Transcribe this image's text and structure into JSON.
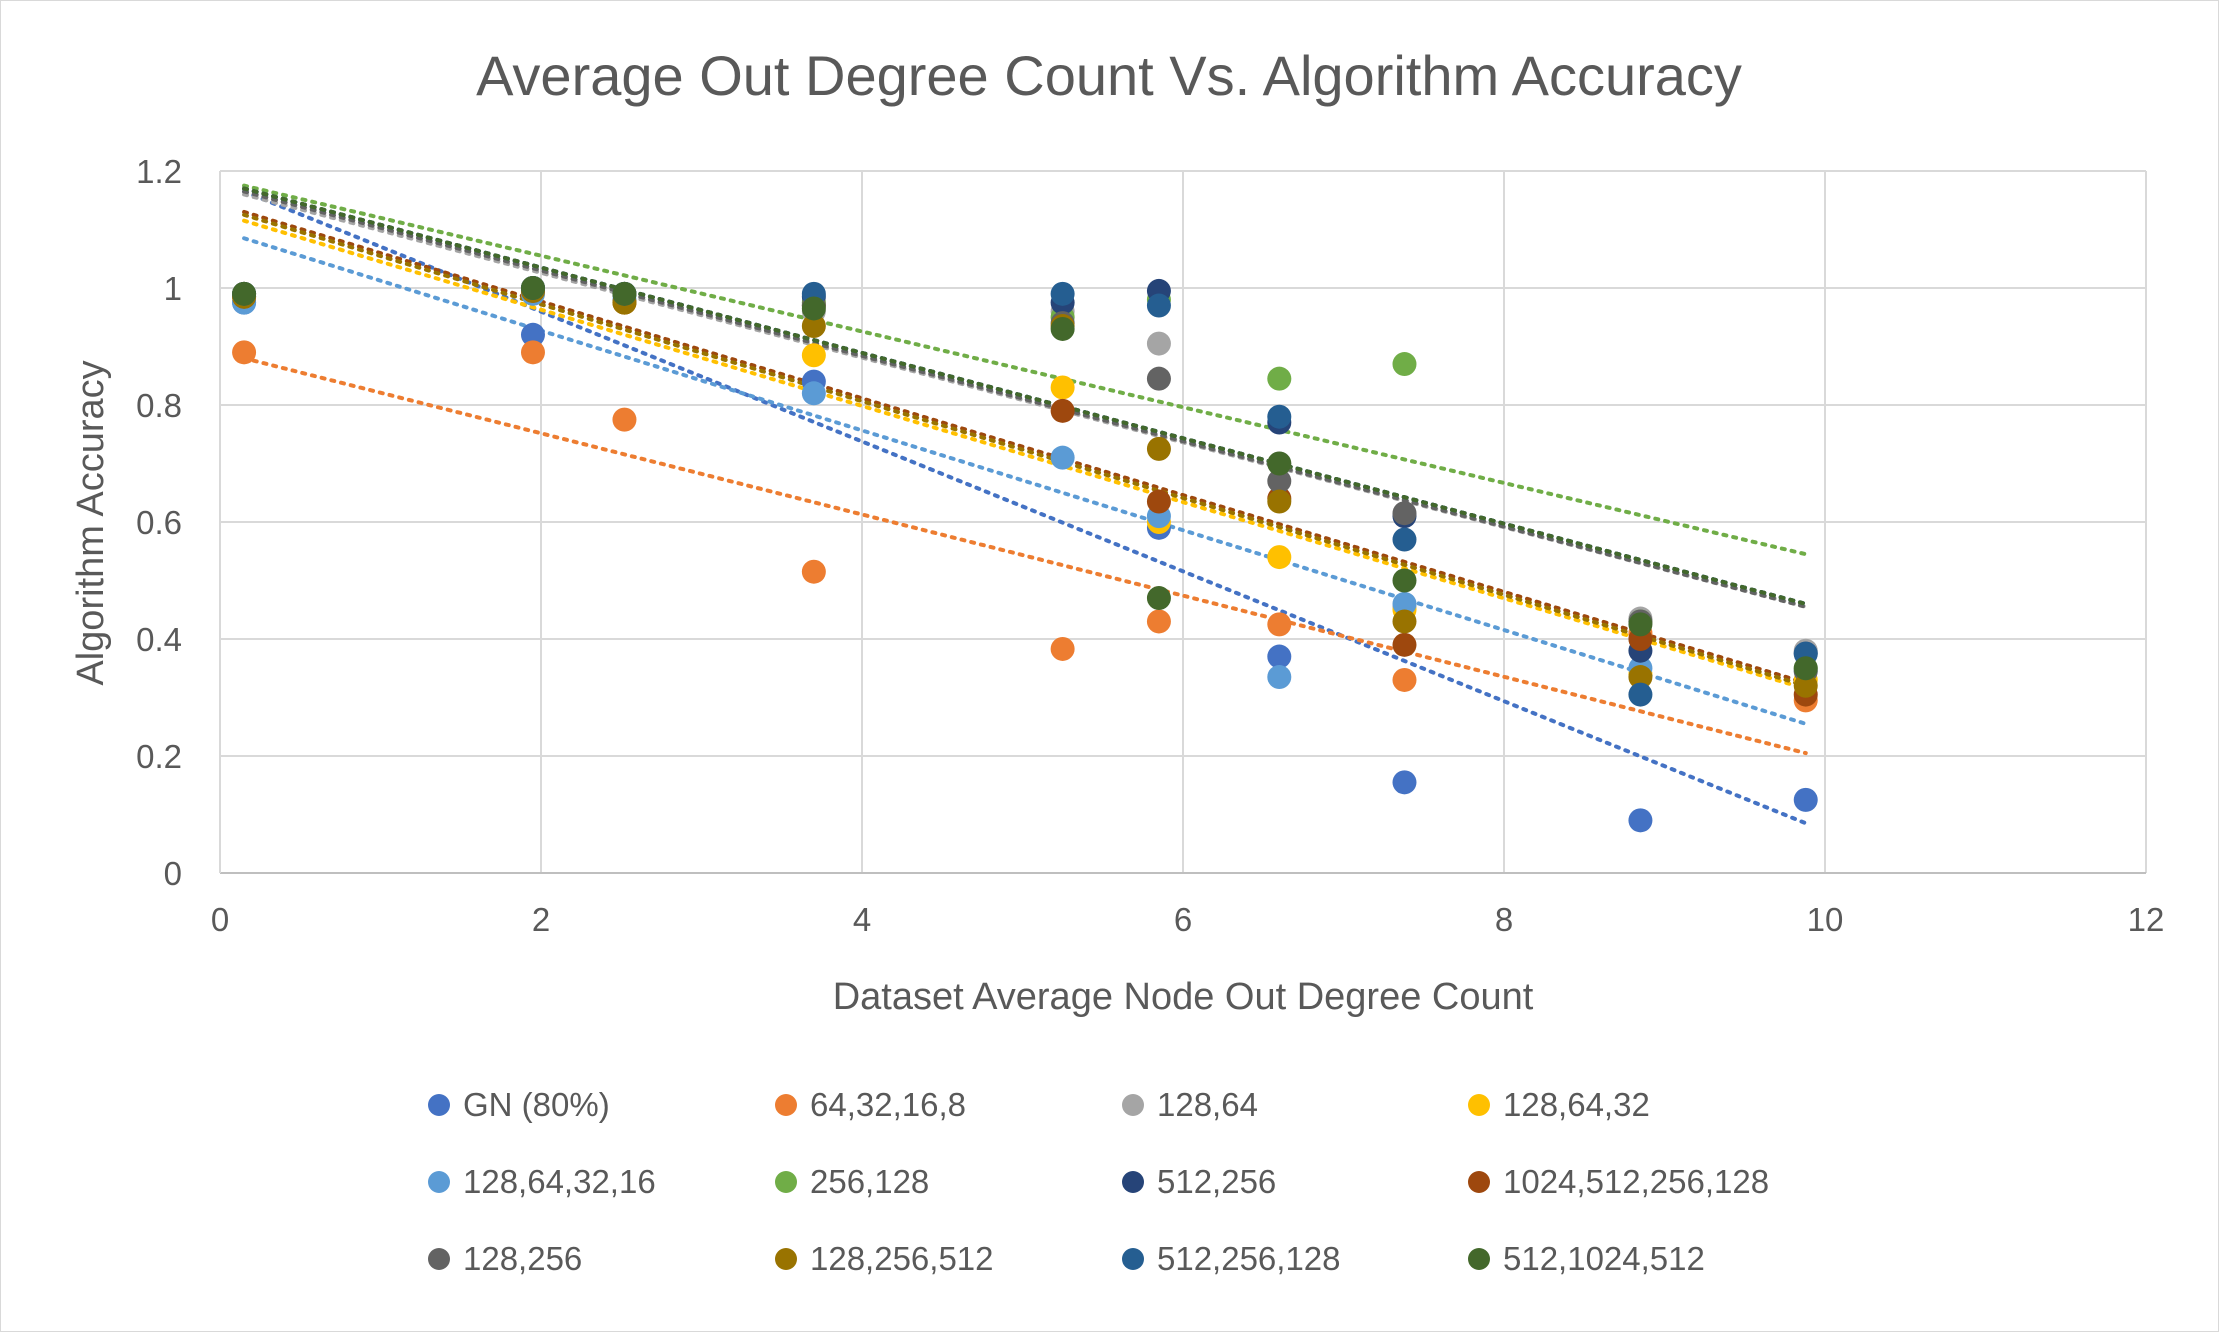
{
  "chart_data": {
    "type": "scatter",
    "title": "Average Out Degree Count Vs. Algorithm Accuracy",
    "xlabel": "Dataset Average Node Out Degree Count",
    "ylabel": "Algorithm Accuracy",
    "xlim": [
      0,
      12
    ],
    "ylim": [
      0,
      1.2
    ],
    "x_ticks": [
      "0",
      "2",
      "4",
      "6",
      "8",
      "10",
      "12"
    ],
    "y_ticks": [
      "0",
      "0.2",
      "0.4",
      "0.6",
      "0.8",
      "1",
      "1.2"
    ],
    "grid": true,
    "trendlines": "linear, dotted, one per series",
    "legend_position": "bottom",
    "series": [
      {
        "name": "GN (80%)",
        "color": "#4472C4",
        "points": [
          [
            0.15,
            0.975
          ],
          [
            1.95,
            0.92
          ],
          [
            3.7,
            0.84
          ],
          [
            5.85,
            0.59
          ],
          [
            6.6,
            0.37
          ],
          [
            7.38,
            0.155
          ],
          [
            8.85,
            0.09
          ],
          [
            9.88,
            0.125
          ]
        ],
        "trend": [
          [
            0.15,
            1.165
          ],
          [
            9.88,
            0.085
          ]
        ]
      },
      {
        "name": "64,32,16,8",
        "color": "#ED7D31",
        "points": [
          [
            0.15,
            0.89
          ],
          [
            1.95,
            0.89
          ],
          [
            2.52,
            0.775
          ],
          [
            3.7,
            0.515
          ],
          [
            5.25,
            0.383
          ],
          [
            5.85,
            0.43
          ],
          [
            6.6,
            0.425
          ],
          [
            7.38,
            0.33
          ],
          [
            8.85,
            0.41
          ],
          [
            9.88,
            0.295
          ]
        ],
        "trend": [
          [
            0.15,
            0.88
          ],
          [
            9.88,
            0.205
          ]
        ]
      },
      {
        "name": "128,64",
        "color": "#A5A5A5",
        "points": [
          [
            0.15,
            0.985
          ],
          [
            1.95,
            0.995
          ],
          [
            2.52,
            0.99
          ],
          [
            3.7,
            0.96
          ],
          [
            5.25,
            0.96
          ],
          [
            5.85,
            0.905
          ],
          [
            6.6,
            0.7
          ],
          [
            7.38,
            0.455
          ],
          [
            8.85,
            0.435
          ],
          [
            9.88,
            0.38
          ]
        ],
        "trend": [
          [
            0.15,
            1.16
          ],
          [
            9.88,
            0.455
          ]
        ]
      },
      {
        "name": "128,64,32",
        "color": "#FFC000",
        "points": [
          [
            0.15,
            0.99
          ],
          [
            1.95,
            0.99
          ],
          [
            2.52,
            0.975
          ],
          [
            3.7,
            0.885
          ],
          [
            5.25,
            0.83
          ],
          [
            5.85,
            0.6
          ],
          [
            6.6,
            0.54
          ],
          [
            7.38,
            0.45
          ],
          [
            8.85,
            0.34
          ],
          [
            9.88,
            0.33
          ]
        ],
        "trend": [
          [
            0.15,
            1.115
          ],
          [
            9.88,
            0.315
          ]
        ]
      },
      {
        "name": "128,64,32,16",
        "color": "#5B9BD5",
        "points": [
          [
            0.15,
            0.975
          ],
          [
            1.95,
            0.99
          ],
          [
            2.52,
            0.98
          ],
          [
            3.7,
            0.82
          ],
          [
            5.25,
            0.71
          ],
          [
            5.85,
            0.61
          ],
          [
            6.6,
            0.335
          ],
          [
            7.38,
            0.46
          ],
          [
            8.85,
            0.35
          ],
          [
            9.88,
            0.345
          ]
        ],
        "trend": [
          [
            0.15,
            1.085
          ],
          [
            9.88,
            0.255
          ]
        ]
      },
      {
        "name": "256,128",
        "color": "#70AD47",
        "points": [
          [
            0.15,
            0.99
          ],
          [
            1.95,
            1.0
          ],
          [
            2.52,
            0.99
          ],
          [
            3.7,
            0.975
          ],
          [
            5.25,
            0.95
          ],
          [
            5.85,
            0.98
          ],
          [
            6.6,
            0.845
          ],
          [
            7.38,
            0.87
          ],
          [
            8.85,
            0.43
          ],
          [
            9.88,
            0.35
          ]
        ],
        "trend": [
          [
            0.15,
            1.175
          ],
          [
            9.88,
            0.545
          ]
        ]
      },
      {
        "name": "512,256",
        "color": "#264478",
        "points": [
          [
            0.15,
            0.99
          ],
          [
            1.95,
            1.0
          ],
          [
            2.52,
            0.99
          ],
          [
            3.7,
            0.985
          ],
          [
            5.25,
            0.975
          ],
          [
            5.85,
            0.995
          ],
          [
            6.6,
            0.77
          ],
          [
            7.38,
            0.61
          ],
          [
            8.85,
            0.38
          ],
          [
            9.88,
            0.375
          ]
        ],
        "trend": [
          [
            0.15,
            1.17
          ],
          [
            9.88,
            0.46
          ]
        ]
      },
      {
        "name": "1024,512,256,128",
        "color": "#9E480E",
        "points": [
          [
            0.15,
            0.985
          ],
          [
            1.95,
            0.995
          ],
          [
            2.52,
            0.975
          ],
          [
            3.7,
            0.97
          ],
          [
            5.25,
            0.79
          ],
          [
            5.85,
            0.635
          ],
          [
            6.6,
            0.64
          ],
          [
            7.38,
            0.39
          ],
          [
            8.85,
            0.4
          ],
          [
            9.88,
            0.305
          ]
        ],
        "trend": [
          [
            0.15,
            1.13
          ],
          [
            9.88,
            0.325
          ]
        ]
      },
      {
        "name": "128,256",
        "color": "#636363",
        "points": [
          [
            0.15,
            0.99
          ],
          [
            1.95,
            1.0
          ],
          [
            2.52,
            0.99
          ],
          [
            3.7,
            0.97
          ],
          [
            5.25,
            0.94
          ],
          [
            5.85,
            0.845
          ],
          [
            6.6,
            0.67
          ],
          [
            7.38,
            0.615
          ],
          [
            8.85,
            0.43
          ],
          [
            9.88,
            0.345
          ]
        ],
        "trend": [
          [
            0.15,
            1.165
          ],
          [
            9.88,
            0.455
          ]
        ]
      },
      {
        "name": "128,256,512",
        "color": "#997300",
        "points": [
          [
            0.15,
            0.985
          ],
          [
            1.95,
            0.995
          ],
          [
            2.52,
            0.975
          ],
          [
            3.7,
            0.935
          ],
          [
            5.25,
            0.935
          ],
          [
            5.85,
            0.725
          ],
          [
            6.6,
            0.635
          ],
          [
            7.38,
            0.43
          ],
          [
            8.85,
            0.335
          ],
          [
            9.88,
            0.32
          ]
        ],
        "trend": [
          [
            0.15,
            1.125
          ],
          [
            9.88,
            0.32
          ]
        ]
      },
      {
        "name": "512,256,128",
        "color": "#255E91",
        "points": [
          [
            0.15,
            0.99
          ],
          [
            1.95,
            1.0
          ],
          [
            2.52,
            0.99
          ],
          [
            3.7,
            0.99
          ],
          [
            5.25,
            0.99
          ],
          [
            5.85,
            0.97
          ],
          [
            6.6,
            0.78
          ],
          [
            7.38,
            0.57
          ],
          [
            8.85,
            0.305
          ],
          [
            9.88,
            0.375
          ]
        ],
        "trend": [
          [
            0.15,
            1.17
          ],
          [
            9.88,
            0.46
          ]
        ]
      },
      {
        "name": "512,1024,512",
        "color": "#43682B",
        "points": [
          [
            0.15,
            0.99
          ],
          [
            1.95,
            1.0
          ],
          [
            2.52,
            0.99
          ],
          [
            3.7,
            0.965
          ],
          [
            5.25,
            0.93
          ],
          [
            5.85,
            0.47
          ],
          [
            6.6,
            0.7
          ],
          [
            7.38,
            0.5
          ],
          [
            8.85,
            0.425
          ],
          [
            9.88,
            0.35
          ]
        ],
        "trend": [
          [
            0.15,
            1.17
          ],
          [
            9.88,
            0.46
          ]
        ]
      }
    ]
  }
}
